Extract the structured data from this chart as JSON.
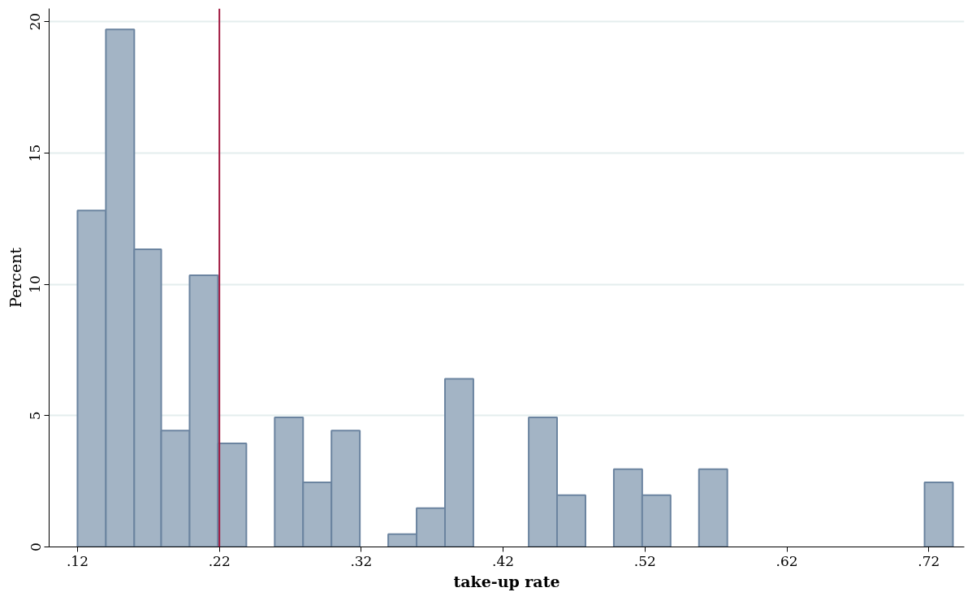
{
  "chart_data": {
    "type": "histogram",
    "xlabel": "take-up rate",
    "ylabel": "Percent",
    "bins": [
      0.12,
      0.14,
      0.16,
      0.179,
      0.199,
      0.219,
      0.239,
      0.259,
      0.279,
      0.299,
      0.319,
      0.339,
      0.359,
      0.379,
      0.399,
      0.438,
      0.458,
      0.478,
      0.498,
      0.518,
      0.538,
      0.558,
      0.578,
      0.717,
      0.737
    ],
    "values": [
      12.81,
      19.7,
      11.33,
      4.43,
      10.34,
      3.94,
      0,
      4.93,
      2.46,
      4.43,
      0,
      0.49,
      1.48,
      6.4,
      0,
      4.93,
      1.97,
      0,
      2.96,
      1.97,
      0,
      2.96,
      0,
      2.46
    ],
    "color": "#a3b4c5",
    "xlim": [
      0.1,
      0.745
    ],
    "xticks": [
      {
        "value": 0.12,
        "label": ".12"
      },
      {
        "value": 0.22,
        "label": ".22"
      },
      {
        "value": 0.32,
        "label": ".32"
      },
      {
        "value": 0.42,
        "label": ".42"
      },
      {
        "value": 0.52,
        "label": ".52"
      },
      {
        "value": 0.62,
        "label": ".62"
      },
      {
        "value": 0.72,
        "label": ".72"
      }
    ],
    "ylim": [
      0,
      20.5
    ],
    "yticks": [
      0,
      5,
      10,
      15,
      20
    ],
    "grid": "y",
    "ref_lines": [
      {
        "axis": "x",
        "value": 0.22,
        "color": "#a0163e"
      }
    ]
  }
}
